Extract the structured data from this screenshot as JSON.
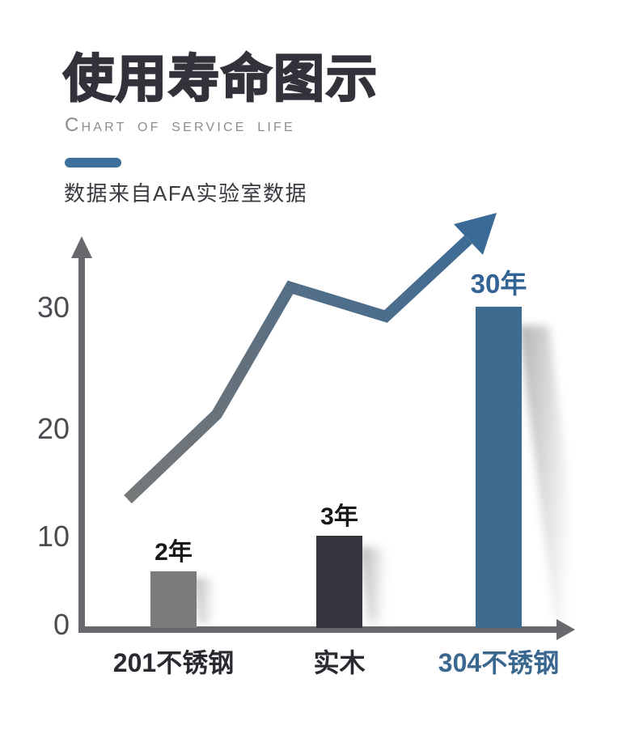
{
  "page": {
    "title": "使用寿命图示",
    "subtitle": "CHART OF SERVICE LIFE",
    "data_source": "数据来自AFA实验室数据"
  },
  "chart_data": {
    "type": "bar",
    "title": "使用寿命图示",
    "subtitle": "CHART OF SERVICE LIFE",
    "source_note": "数据来自AFA实验室数据",
    "categories": [
      "201不锈钢",
      "实木",
      "304不锈钢"
    ],
    "values": [
      2,
      3,
      30
    ],
    "value_labels": [
      "2年",
      "3年",
      "30年"
    ],
    "unit": "年",
    "yticks": [
      0,
      10,
      20,
      30
    ],
    "ylim": [
      0,
      35
    ],
    "xlabel": "",
    "ylabel": "",
    "grid": false,
    "legend": false,
    "highlight_category": "304不锈钢",
    "bar_colors": [
      "#7b7b7c",
      "#34353d",
      "#3e6b90"
    ],
    "value_label_colors": [
      "#17181a",
      "#17181a",
      "#336294"
    ],
    "category_label_colors": [
      "#292a30",
      "#292a30",
      "#3a678f"
    ],
    "axis_color": "#69696d",
    "overlay": "ascending trend arrow over the bars, gray-to-blue gradient, pointing up-right"
  },
  "colors": {
    "accent_blue": "#3d6f9b",
    "title_text": "#32333a",
    "subtitle_text": "#8d8d8d",
    "source_text": "#3a3b40",
    "background": "#ffffff"
  }
}
